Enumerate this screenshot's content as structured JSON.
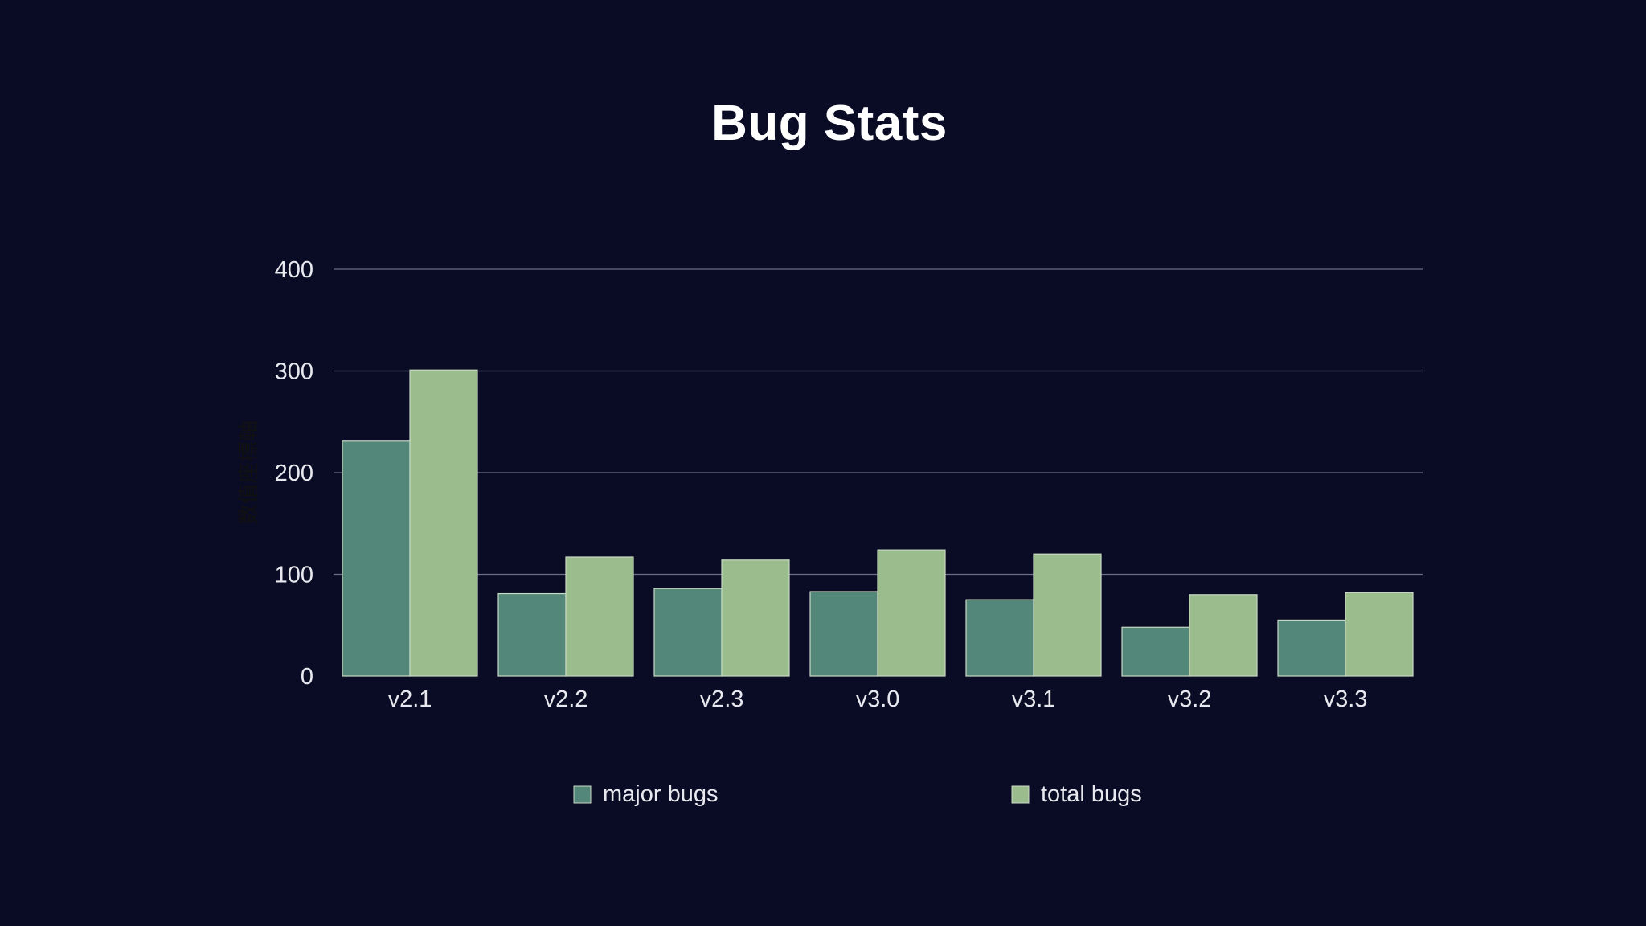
{
  "chart_data": {
    "type": "bar",
    "title": "Bug Stats",
    "ylabel": "数值座標軸",
    "xlabel": "",
    "categories": [
      "v2.1",
      "v2.2",
      "v2.3",
      "v3.0",
      "v3.1",
      "v3.2",
      "v3.3"
    ],
    "series": [
      {
        "name": "major bugs",
        "color": "#528779",
        "values": [
          231,
          81,
          86,
          83,
          75,
          48,
          55
        ]
      },
      {
        "name": "total bugs",
        "color": "#9bbd8d",
        "values": [
          301,
          117,
          114,
          124,
          120,
          80,
          82
        ]
      }
    ],
    "ylim": [
      0,
      400
    ],
    "yticks": [
      0,
      100,
      200,
      300,
      400
    ],
    "grid": true,
    "legend_position": "bottom"
  },
  "colors": {
    "background": "#0a0b24",
    "grid": "#6a6d86",
    "text": "#e8e8ef"
  }
}
